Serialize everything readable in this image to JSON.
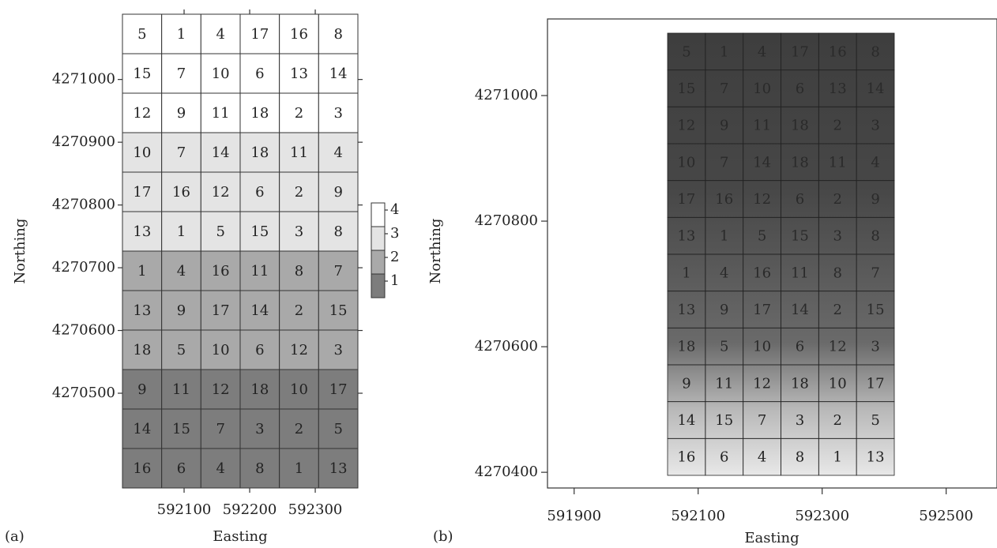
{
  "panel_a": {
    "label": "(a)",
    "xlabel": "Easting",
    "ylabel": "Northing",
    "xlim": [
      592006,
      592365
    ],
    "ylim": [
      4270349,
      4271104
    ],
    "xticks": [
      592100,
      592200,
      592300
    ],
    "yticks": [
      4270500,
      4270600,
      4270700,
      4270800,
      4270900,
      4271000
    ],
    "legend": [
      {
        "label": 4,
        "color": "#ffffff"
      },
      {
        "label": 3,
        "color": "#e4e4e4"
      },
      {
        "label": 2,
        "color": "#a9a9a9"
      },
      {
        "label": 1,
        "color": "#7d7d7d"
      }
    ],
    "rows": [
      {
        "level": 4,
        "plots": [
          5,
          1,
          4,
          17,
          16,
          8
        ]
      },
      {
        "level": 4,
        "plots": [
          15,
          7,
          10,
          6,
          13,
          14
        ]
      },
      {
        "level": 4,
        "plots": [
          12,
          9,
          11,
          18,
          2,
          3
        ]
      },
      {
        "level": 3,
        "plots": [
          10,
          7,
          14,
          18,
          11,
          4
        ]
      },
      {
        "level": 3,
        "plots": [
          17,
          16,
          12,
          6,
          2,
          9
        ]
      },
      {
        "level": 3,
        "plots": [
          13,
          1,
          5,
          15,
          3,
          8
        ]
      },
      {
        "level": 2,
        "plots": [
          1,
          4,
          16,
          11,
          8,
          7
        ]
      },
      {
        "level": 2,
        "plots": [
          13,
          9,
          17,
          14,
          2,
          15
        ]
      },
      {
        "level": 2,
        "plots": [
          18,
          5,
          10,
          6,
          12,
          3
        ]
      },
      {
        "level": 1,
        "plots": [
          9,
          11,
          12,
          18,
          10,
          17
        ]
      },
      {
        "level": 1,
        "plots": [
          14,
          15,
          7,
          3,
          2,
          5
        ]
      },
      {
        "level": 1,
        "plots": [
          16,
          6,
          4,
          8,
          1,
          13
        ]
      }
    ]
  },
  "panel_b": {
    "label": "(b)",
    "xlabel": "Easting",
    "ylabel": "Northing",
    "xlim": [
      591857,
      592582
    ],
    "ylim": [
      4270375,
      4271122
    ],
    "xticks": [
      591900,
      592100,
      592300,
      592500
    ],
    "yticks": [
      4270400,
      4270600,
      4270800,
      4271000
    ],
    "rows": [
      [
        5,
        1,
        4,
        17,
        16,
        8
      ],
      [
        15,
        7,
        10,
        6,
        13,
        14
      ],
      [
        12,
        9,
        11,
        18,
        2,
        3
      ],
      [
        10,
        7,
        14,
        18,
        11,
        4
      ],
      [
        17,
        16,
        12,
        6,
        2,
        9
      ],
      [
        13,
        1,
        5,
        15,
        3,
        8
      ],
      [
        1,
        4,
        16,
        11,
        8,
        7
      ],
      [
        13,
        9,
        17,
        14,
        2,
        15
      ],
      [
        18,
        5,
        10,
        6,
        12,
        3
      ],
      [
        9,
        11,
        12,
        18,
        10,
        17
      ],
      [
        14,
        15,
        7,
        3,
        2,
        5
      ],
      [
        16,
        6,
        4,
        8,
        1,
        13
      ]
    ]
  }
}
